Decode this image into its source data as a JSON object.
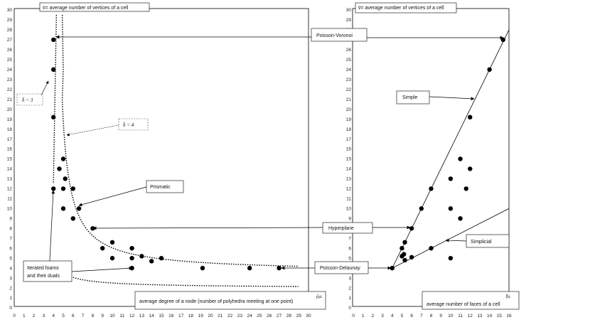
{
  "chart_data": [
    {
      "type": "scatter",
      "panel": "left",
      "title": "v̄= average number of vertices of a cell",
      "xlabel_symbol": "n̄=",
      "xlabel": "average degree of a node (number of polyhedra meeting at one point)",
      "xlim": [
        0,
        30
      ],
      "ylim": [
        0,
        30
      ],
      "x_ticks": [
        0,
        1,
        2,
        3,
        4,
        5,
        6,
        7,
        8,
        9,
        10,
        11,
        12,
        13,
        14,
        15,
        16,
        17,
        18,
        19,
        20,
        21,
        22,
        23,
        24,
        25,
        26,
        27,
        28,
        29,
        30
      ],
      "y_ticks": [
        0,
        1,
        2,
        3,
        4,
        5,
        6,
        7,
        8,
        9,
        10,
        11,
        12,
        13,
        14,
        15,
        16,
        17,
        18,
        19,
        20,
        21,
        22,
        23,
        24,
        25,
        26,
        27,
        28,
        29,
        30
      ],
      "points": [
        [
          4,
          27
        ],
        [
          4,
          24
        ],
        [
          4,
          19.2
        ],
        [
          4,
          12
        ],
        [
          4.6,
          14
        ],
        [
          5,
          15
        ],
        [
          5.2,
          13
        ],
        [
          5,
          12
        ],
        [
          5,
          10
        ],
        [
          6,
          12
        ],
        [
          6,
          9
        ],
        [
          6.6,
          10
        ],
        [
          8,
          8
        ],
        [
          9,
          6
        ],
        [
          10,
          6.6
        ],
        [
          10,
          5
        ],
        [
          12,
          6
        ],
        [
          12,
          5
        ],
        [
          12,
          4
        ],
        [
          13,
          5.2
        ],
        [
          14,
          4.7
        ],
        [
          15,
          5
        ],
        [
          19.2,
          4
        ],
        [
          24,
          4
        ],
        [
          27,
          4
        ]
      ],
      "annotations": [
        {
          "label": "Poisson-Voronoi",
          "target": [
            4.6,
            27
          ]
        },
        {
          "label": "Prismatic",
          "target": [
            6.6,
            10
          ]
        },
        {
          "label": "Hyperplane",
          "target": [
            8,
            8
          ]
        },
        {
          "label": "Poisson-Delaunay",
          "target": [
            27,
            4
          ]
        },
        {
          "label_lines": [
            "Iterated foams",
            "and their duals"
          ],
          "targets": [
            [
              4,
              12
            ],
            [
              12,
              4
            ]
          ]
        },
        {
          "label": "h̄ = 3",
          "curve": "hbar3"
        },
        {
          "label": "h̄ = 4",
          "curve": "hbar4"
        }
      ]
    },
    {
      "type": "scatter",
      "panel": "right",
      "title": "v̄= average number of vertices of a cell",
      "xlabel_symbol": "f̄=",
      "xlabel": "average number of faces of a cell",
      "xlim": [
        0,
        16
      ],
      "ylim": [
        0,
        30
      ],
      "x_ticks": [
        0,
        1,
        2,
        3,
        4,
        5,
        6,
        7,
        8,
        9,
        10,
        11,
        12,
        13,
        14,
        15,
        16
      ],
      "y_ticks": [
        0,
        1,
        2,
        3,
        4,
        5,
        6,
        7,
        8,
        9,
        10,
        11,
        12,
        13,
        14,
        15,
        16,
        17,
        18,
        19,
        20,
        21,
        22,
        23,
        24,
        25,
        26,
        27,
        28,
        29,
        30
      ],
      "points": [
        [
          4,
          4
        ],
        [
          5,
          5.2
        ],
        [
          5.2,
          5.4
        ],
        [
          5.3,
          4.8
        ],
        [
          5,
          6
        ],
        [
          5.3,
          6.6
        ],
        [
          6,
          5.1
        ],
        [
          6,
          8
        ],
        [
          7,
          10
        ],
        [
          8,
          12
        ],
        [
          8,
          6
        ],
        [
          10,
          13
        ],
        [
          10,
          10
        ],
        [
          10,
          5
        ],
        [
          11,
          15
        ],
        [
          11,
          9
        ],
        [
          11.6,
          12
        ],
        [
          12,
          14
        ],
        [
          12,
          19.2
        ],
        [
          14,
          24
        ],
        [
          15.4,
          27
        ]
      ],
      "lines": [
        {
          "name": "Simple",
          "from": [
            4,
            4
          ],
          "to": [
            16,
            28
          ]
        },
        {
          "name": "Simplicial",
          "from": [
            4,
            4
          ],
          "to": [
            16,
            10
          ]
        }
      ],
      "annotations": [
        {
          "label": "Simple",
          "target": [
            12.5,
            21
          ]
        },
        {
          "label": "Simplicial",
          "target": [
            9.5,
            6.75
          ]
        },
        {
          "label": "Poisson-Voronoi",
          "target": [
            15.4,
            27
          ]
        },
        {
          "label": "Hyperplane",
          "target": [
            6,
            8
          ]
        },
        {
          "label": "Poisson-Delaunay",
          "target": [
            4,
            4
          ]
        }
      ]
    }
  ],
  "labels": {
    "hbar3": "h̄ = 3",
    "hbar4": "h̄ = 4",
    "poisson_voronoi": "Poisson-Voronoi",
    "prismatic": "Prismatic",
    "hyperplane": "Hyperplane",
    "poisson_delaunay": "Poisson-Delaunay",
    "iterated_1": "Iterated foams",
    "iterated_2": "and their duals",
    "simple": "Simple",
    "simplicial": "Simplicial",
    "left_title": "v̄= average number of vertices of a cell",
    "right_title": "v̄= average number of vertices of a cell",
    "left_xsym": "n̄=",
    "left_xlabel": "average degree of a node (number of polyhedra meeting at one point)",
    "right_xsym": "f̄=",
    "right_xlabel": "average number of faces of a cell"
  }
}
